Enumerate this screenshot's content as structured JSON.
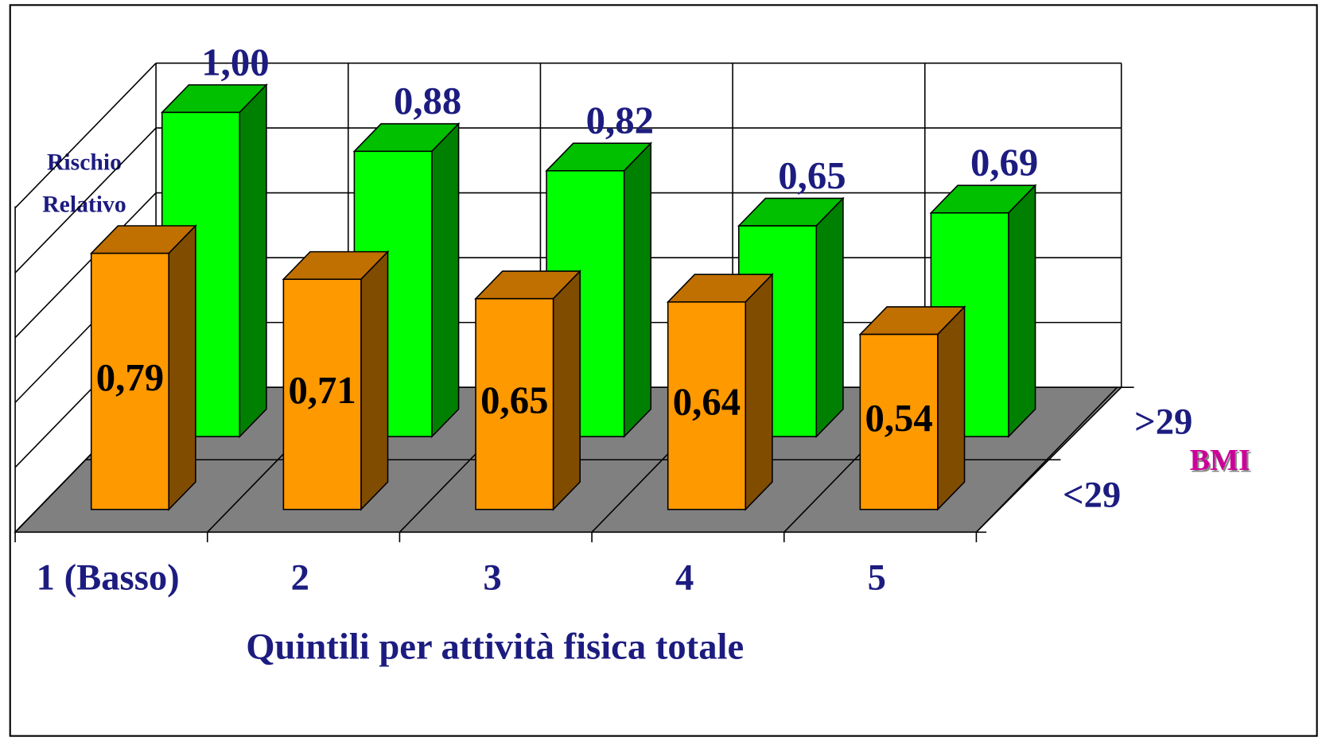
{
  "chart_data": {
    "type": "bar3d",
    "y_label_lines": [
      "Rischio",
      "Relativo"
    ],
    "x_label": "Quintili per attività fisica totale",
    "legend_title": "BMI",
    "categories": [
      "1 (Basso)",
      "2",
      "3",
      "4",
      "5"
    ],
    "series": [
      {
        "name": "<29",
        "color": "#FF9900",
        "values": [
          0.79,
          0.71,
          0.65,
          0.64,
          0.54
        ],
        "value_labels": [
          "0,79",
          "0,71",
          "0,65",
          "0,64",
          "0,54"
        ]
      },
      {
        "name": ">29",
        "color": "#00FF00",
        "values": [
          1.0,
          0.88,
          0.82,
          0.65,
          0.69
        ],
        "value_labels": [
          "1,00",
          "0,88",
          "0,82",
          "0,65",
          "0,69"
        ]
      }
    ],
    "ylim": [
      0,
      1
    ],
    "yticks": [
      0,
      0.2,
      0.4,
      0.6,
      0.8,
      1
    ],
    "grid": true
  }
}
